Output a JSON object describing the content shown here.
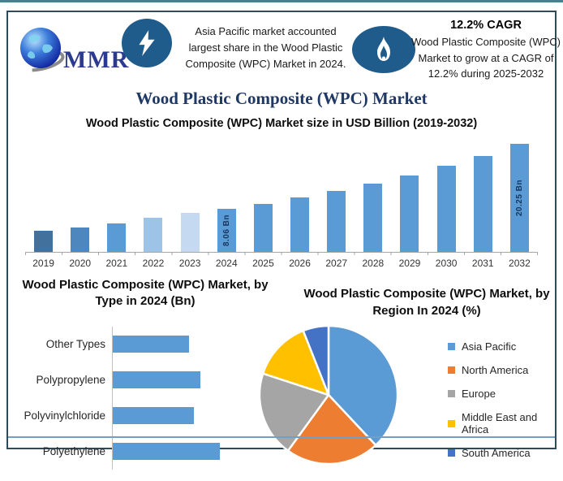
{
  "header": {
    "logo_text": "MMR",
    "highlight_left": "Asia Pacific market accounted largest share in the Wood Plastic Composite (WPC) Market in 2024.",
    "cagr_title": "12.2% CAGR",
    "highlight_right": "Wood Plastic Composite (WPC) Market to grow at a CAGR of 12.2% during 2025-2032"
  },
  "page_title": "Wood Plastic Composite (WPC) Market",
  "colors": {
    "frame_border": "#2F4A58",
    "icon_background": "#1F5C8B",
    "title_navy": "#1F3864",
    "primary_bar_blue": "#5B9BD5",
    "divider_blue": "#6FA0C8"
  },
  "chart_data": [
    {
      "id": "market_size",
      "type": "bar",
      "title": "Wood Plastic Composite (WPC) Market size in USD Billion (2019-2032)",
      "categories": [
        "2019",
        "2020",
        "2021",
        "2022",
        "2023",
        "2024",
        "2025",
        "2026",
        "2027",
        "2028",
        "2029",
        "2030",
        "2031",
        "2032"
      ],
      "values": [
        4.0,
        4.6,
        5.4,
        6.4,
        7.3,
        8.06,
        9.04,
        10.15,
        11.38,
        12.77,
        14.33,
        16.08,
        18.04,
        20.25
      ],
      "unit": "USD Billion",
      "ylabel": "USD Billion",
      "ylim": [
        0,
        21
      ],
      "grid": false,
      "bar_colors": [
        "#41719C",
        "#4E87BE",
        "#5B9BD5",
        "#9DC3E6",
        "#C5D9F1",
        "#5B9BD5",
        "#5B9BD5",
        "#5B9BD5",
        "#5B9BD5",
        "#5B9BD5",
        "#5B9BD5",
        "#5B9BD5",
        "#5B9BD5",
        "#5B9BD5"
      ],
      "data_labels": {
        "2024": "8.06 Bn",
        "2032": "20.25 Bn"
      }
    },
    {
      "id": "by_type",
      "type": "bar",
      "orientation": "horizontal",
      "title": "Wood Plastic Composite (WPC) Market, by Type in 2024 (Bn)",
      "categories": [
        "Other Types",
        "Polypropylene",
        "Polyvinylchloride",
        "Polyethylene"
      ],
      "values": [
        1.75,
        2.0,
        1.85,
        2.45
      ],
      "unit": "Bn",
      "grid": false,
      "bar_color": "#5B9BD5"
    },
    {
      "id": "by_region",
      "type": "pie",
      "title": "Wood Plastic Composite (WPC) Market, by Region In 2024 (%)",
      "labels": [
        "Asia Pacific",
        "North America",
        "Europe",
        "Middle East and Africa",
        "South America"
      ],
      "values": [
        38,
        22,
        20,
        14,
        6
      ],
      "unit": "%",
      "colors": [
        "#5B9BD5",
        "#ED7D31",
        "#A5A5A5",
        "#FFC000",
        "#4472C4"
      ],
      "legend_position": "right",
      "start_angle_deg": 0
    }
  ]
}
